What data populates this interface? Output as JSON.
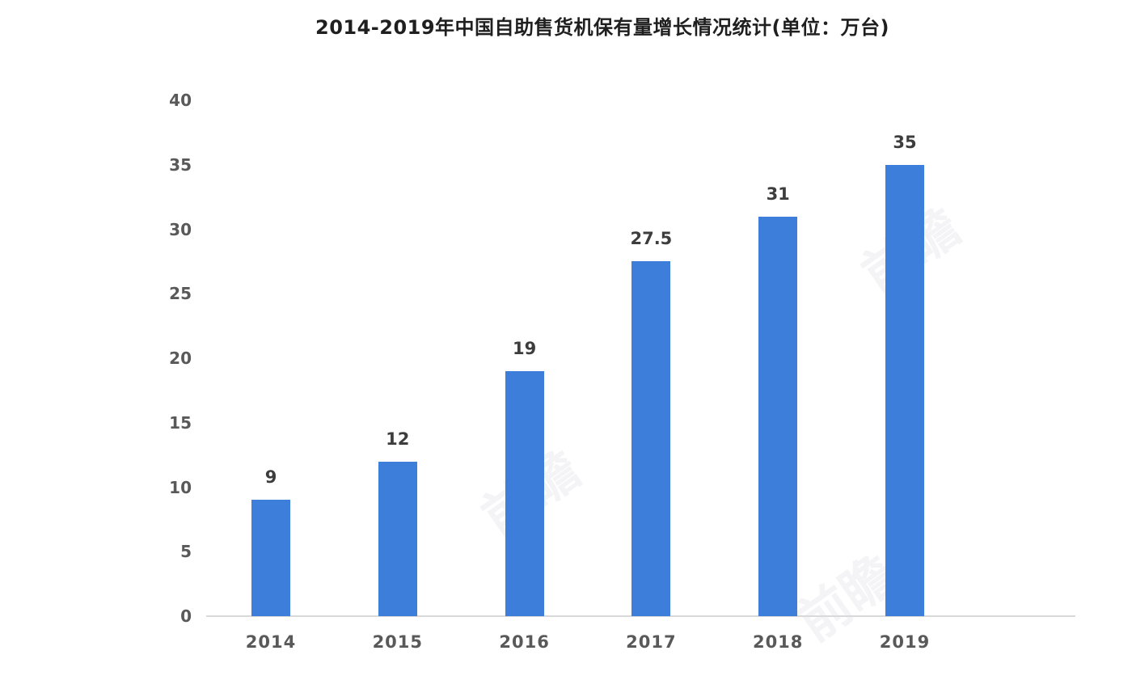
{
  "page": {
    "background": "#ffffff"
  },
  "chart_data": {
    "type": "bar",
    "title": "2014-2019年中国自助售货机保有量增长情况统计(单位：万台)",
    "categories": [
      "2014",
      "2015",
      "2016",
      "2017",
      "2018",
      "2019"
    ],
    "values": [
      9,
      12,
      19,
      27.5,
      31,
      35
    ],
    "value_labels": [
      "9",
      "12",
      "19",
      "27.5",
      "31",
      "35"
    ],
    "xlabel": "",
    "ylabel": "",
    "ylim": [
      0,
      40
    ],
    "yticks": [
      0,
      5,
      10,
      15,
      20,
      25,
      30,
      35,
      40
    ],
    "grid": "off",
    "legend": "none",
    "bar_color": "#3d7edb",
    "axis_line_color": "#d9d9d9",
    "tick_label_color": "#595959",
    "value_label_color": "#3d3d3d",
    "title_color": "#1f1f1f"
  },
  "watermark": {
    "text": "前瞻"
  }
}
